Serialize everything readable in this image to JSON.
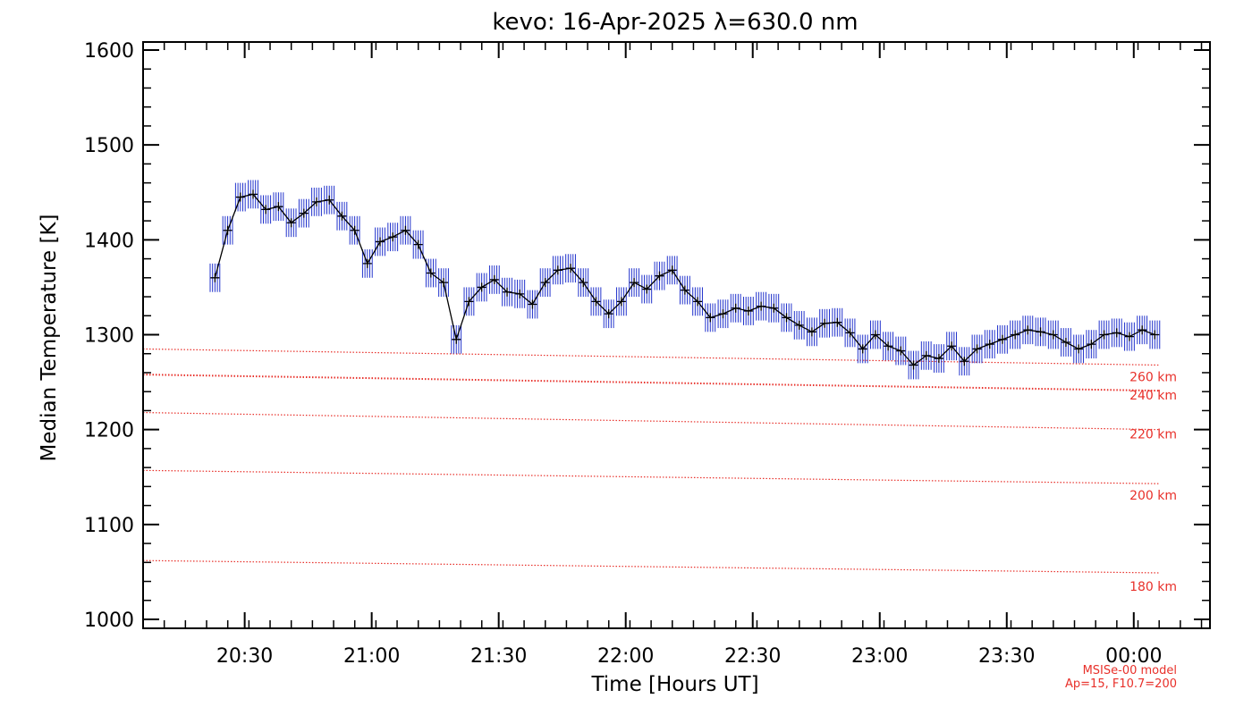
{
  "chart_data": {
    "type": "line",
    "title": "kevo: 16-Apr-2025 λ=630.0 nm",
    "xlabel": "Time [Hours UT]",
    "ylabel": "Median Temperature [K]",
    "xlim": [
      20.1,
      24.3
    ],
    "ylim": [
      1000,
      1600
    ],
    "x_ticks": [
      20.5,
      21.0,
      21.5,
      22.0,
      22.5,
      23.0,
      23.5,
      24.0
    ],
    "x_tick_labels": [
      "20:30",
      "21:00",
      "21:30",
      "22:00",
      "22:30",
      "23:00",
      "23:30",
      "00:00"
    ],
    "y_ticks": [
      1000,
      1100,
      1200,
      1300,
      1400,
      1500,
      1600
    ],
    "y_tick_labels": [
      "1000",
      "1100",
      "1200",
      "1300",
      "1400",
      "1500",
      "1600"
    ],
    "series": [
      {
        "name": "Median temperature",
        "color": "#000000",
        "errorbar_color": "#2233cc",
        "error": 15,
        "x": [
          20.383,
          20.433,
          20.483,
          20.533,
          20.583,
          20.633,
          20.683,
          20.733,
          20.783,
          20.833,
          20.883,
          20.933,
          20.983,
          21.033,
          21.083,
          21.133,
          21.183,
          21.233,
          21.283,
          21.333,
          21.383,
          21.433,
          21.483,
          21.533,
          21.583,
          21.633,
          21.683,
          21.733,
          21.783,
          21.833,
          21.883,
          21.933,
          21.983,
          22.033,
          22.083,
          22.133,
          22.183,
          22.233,
          22.283,
          22.333,
          22.383,
          22.433,
          22.483,
          22.533,
          22.583,
          22.633,
          22.683,
          22.733,
          22.783,
          22.833,
          22.883,
          22.933,
          22.983,
          23.033,
          23.083,
          23.133,
          23.183,
          23.233,
          23.283,
          23.333,
          23.383,
          23.433,
          23.483,
          23.533,
          23.583,
          23.633,
          23.683,
          23.733,
          23.783,
          23.833,
          23.883,
          23.933,
          23.983,
          24.033,
          24.083
        ],
        "y": [
          1360,
          1410,
          1445,
          1448,
          1432,
          1435,
          1418,
          1428,
          1440,
          1442,
          1425,
          1410,
          1375,
          1398,
          1403,
          1410,
          1395,
          1365,
          1355,
          1295,
          1335,
          1350,
          1358,
          1345,
          1343,
          1332,
          1355,
          1368,
          1370,
          1355,
          1335,
          1322,
          1335,
          1355,
          1348,
          1362,
          1368,
          1347,
          1335,
          1318,
          1322,
          1328,
          1325,
          1330,
          1328,
          1318,
          1310,
          1303,
          1312,
          1313,
          1302,
          1285,
          1300,
          1288,
          1283,
          1268,
          1278,
          1275,
          1288,
          1272,
          1285,
          1290,
          1295,
          1300,
          1305,
          1303,
          1300,
          1292,
          1285,
          1290,
          1300,
          1302,
          1298,
          1305,
          1300
        ]
      }
    ],
    "model_lines": [
      {
        "label": "260 km",
        "color": "#e8302a",
        "x": [
          20.1,
          24.1
        ],
        "y": [
          1285,
          1268
        ]
      },
      {
        "label": "240 km",
        "color": "#e8302a",
        "x": [
          20.1,
          24.1
        ],
        "y": [
          1258,
          1241
        ]
      },
      {
        "label": "220 km",
        "color": "#e8302a",
        "x": [
          20.1,
          24.1
        ],
        "y": [
          1218,
          1200
        ]
      },
      {
        "label": "200 km",
        "color": "#e8302a",
        "x": [
          20.1,
          24.1
        ],
        "y": [
          1157,
          1143
        ]
      },
      {
        "label": "180 km",
        "color": "#e8302a",
        "x": [
          20.1,
          24.1
        ],
        "y": [
          1062,
          1049
        ]
      }
    ],
    "model_note": [
      "MSISe-00 model",
      "Ap=15, F10.7=200"
    ]
  }
}
